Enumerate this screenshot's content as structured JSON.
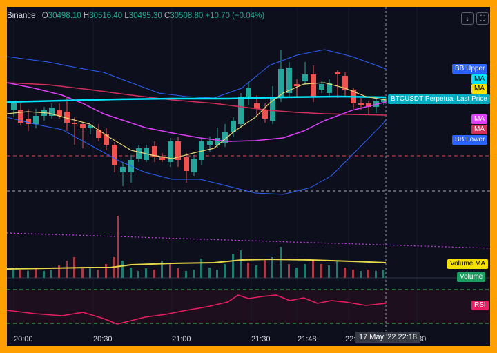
{
  "legend": {
    "source": "Binance",
    "o_key": "O",
    "o": "30498.10",
    "h_key": "H",
    "h": "30516.40",
    "l_key": "L",
    "l": "30495.30",
    "c_key": "C",
    "c": "30508.80",
    "change": "+10.70 (+0.04%)"
  },
  "toolbar": {
    "download_icon": "↓",
    "fullscreen_icon": "⛶"
  },
  "scale_tags": {
    "bb_upper": "BB:Upper",
    "ma_cyan": "MA",
    "ma_yellow": "MA",
    "last_price": "BTCUSDT Perpetual Last Price",
    "ma_magenta": "MA",
    "ma_red": "MA",
    "bb_lower": "BB:Lower",
    "volume_ma": "Volume MA",
    "volume": "Volume",
    "rsi": "RSI"
  },
  "time_axis": {
    "labels": [
      "20:00",
      "20:30",
      "21:00",
      "21:30",
      "21:48",
      "22:",
      ":30"
    ],
    "cursor": "17 May '22   22:18"
  },
  "colors": {
    "frame": "#ff9f00",
    "background": "#0d0f1c",
    "up": "#26a69a",
    "down": "#ef5350",
    "bb": "#2962ff",
    "ma_cyan": "#00e5ff",
    "ma_yellow": "#e8d77a",
    "ma_magenta": "#e040fb",
    "ma_red": "#d32f5a",
    "volume_ma": "#e6d84a",
    "rsi": "#e91e63",
    "volume_tag": "#1a9e60"
  }
}
